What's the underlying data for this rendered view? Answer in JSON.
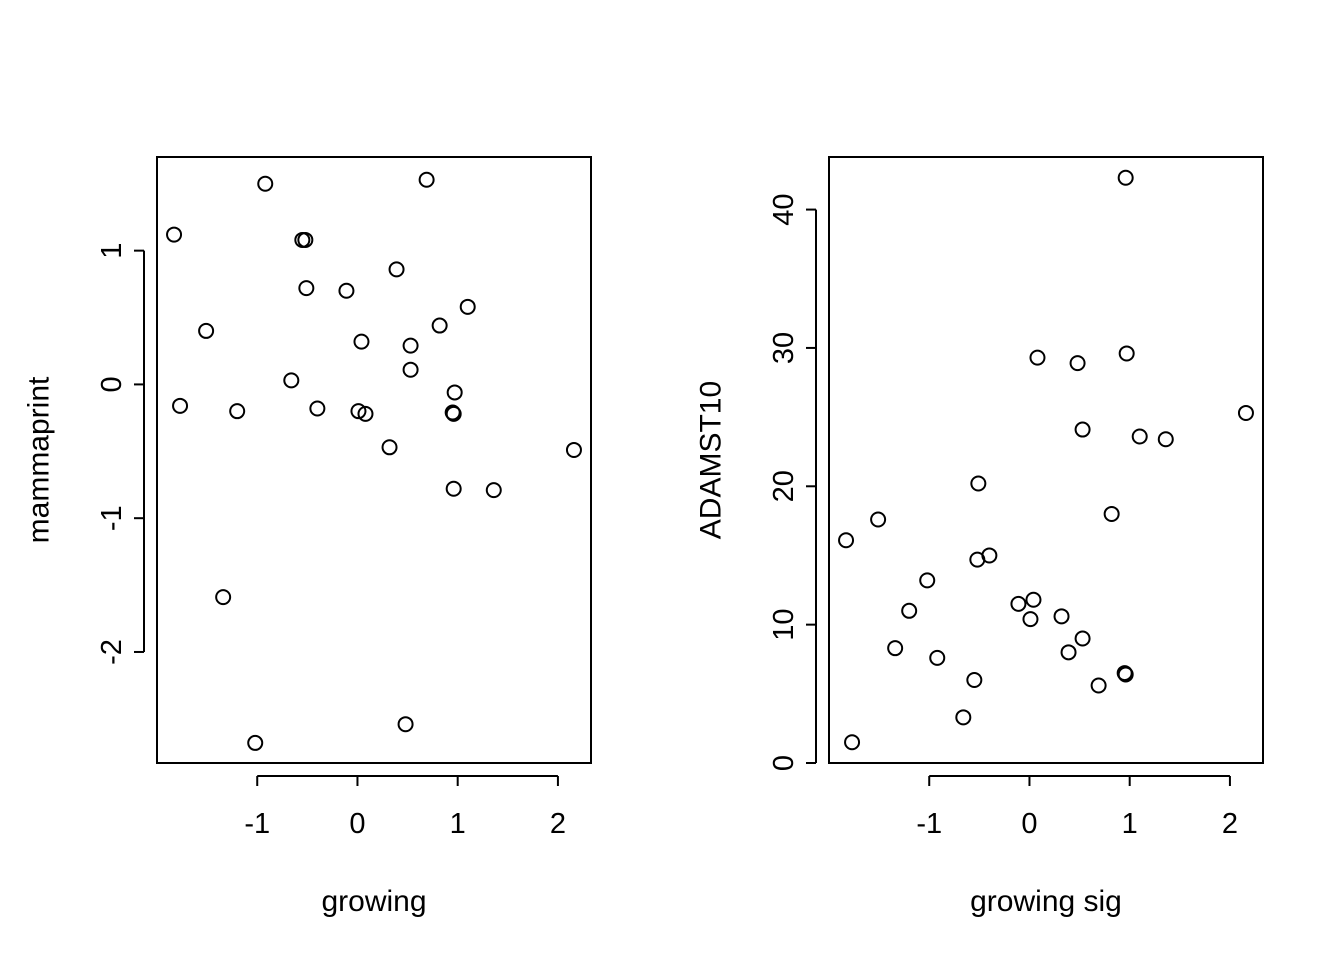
{
  "chart_data": [
    {
      "type": "scatter",
      "xlabel": "growing",
      "ylabel": "mammaprint",
      "xlim": [
        -2.0,
        2.33
      ],
      "ylim": [
        -2.83,
        1.7
      ],
      "xticks": [
        -1,
        0,
        1,
        2
      ],
      "yticks": [
        -2,
        -1,
        0,
        1
      ],
      "marker": "open-circle",
      "grid": false,
      "points": [
        {
          "x": -1.83,
          "y": 1.12
        },
        {
          "x": -1.77,
          "y": -0.16
        },
        {
          "x": -1.51,
          "y": 0.4
        },
        {
          "x": -1.34,
          "y": -1.59
        },
        {
          "x": -1.2,
          "y": -0.2
        },
        {
          "x": -1.02,
          "y": -2.68
        },
        {
          "x": -0.92,
          "y": 1.5
        },
        {
          "x": -0.66,
          "y": 0.03
        },
        {
          "x": -0.55,
          "y": 1.08
        },
        {
          "x": -0.52,
          "y": 1.08
        },
        {
          "x": -0.51,
          "y": 0.72
        },
        {
          "x": -0.4,
          "y": -0.18
        },
        {
          "x": -0.11,
          "y": 0.7
        },
        {
          "x": 0.01,
          "y": -0.2
        },
        {
          "x": 0.04,
          "y": 0.32
        },
        {
          "x": 0.08,
          "y": -0.22
        },
        {
          "x": 0.32,
          "y": -0.47
        },
        {
          "x": 0.39,
          "y": 0.86
        },
        {
          "x": 0.48,
          "y": -2.54
        },
        {
          "x": 0.53,
          "y": 0.29
        },
        {
          "x": 0.53,
          "y": 0.11
        },
        {
          "x": 0.69,
          "y": 1.53
        },
        {
          "x": 0.82,
          "y": 0.44
        },
        {
          "x": 0.95,
          "y": -0.21
        },
        {
          "x": 0.96,
          "y": -0.22
        },
        {
          "x": 0.96,
          "y": -0.78
        },
        {
          "x": 0.97,
          "y": -0.06
        },
        {
          "x": 1.1,
          "y": 0.58
        },
        {
          "x": 1.36,
          "y": -0.79
        },
        {
          "x": 2.16,
          "y": -0.49
        }
      ]
    },
    {
      "type": "scatter",
      "xlabel": "growing sig",
      "ylabel": "ADAMST10",
      "xlim": [
        -2.0,
        2.33
      ],
      "ylim": [
        0,
        43.8
      ],
      "xticks": [
        -1,
        0,
        1,
        2
      ],
      "yticks": [
        0,
        10,
        20,
        30,
        40
      ],
      "marker": "open-circle",
      "grid": false,
      "points": [
        {
          "x": -1.83,
          "y": 16.1
        },
        {
          "x": -1.77,
          "y": 1.5
        },
        {
          "x": -1.51,
          "y": 17.6
        },
        {
          "x": -1.34,
          "y": 8.3
        },
        {
          "x": -1.2,
          "y": 11.0
        },
        {
          "x": -1.02,
          "y": 13.2
        },
        {
          "x": -0.92,
          "y": 7.6
        },
        {
          "x": -0.66,
          "y": 3.3
        },
        {
          "x": -0.55,
          "y": 6.0
        },
        {
          "x": -0.52,
          "y": 14.7
        },
        {
          "x": -0.51,
          "y": 20.2
        },
        {
          "x": -0.4,
          "y": 15.0
        },
        {
          "x": -0.11,
          "y": 11.5
        },
        {
          "x": 0.01,
          "y": 10.4
        },
        {
          "x": 0.04,
          "y": 11.8
        },
        {
          "x": 0.08,
          "y": 29.3
        },
        {
          "x": 0.32,
          "y": 10.6
        },
        {
          "x": 0.39,
          "y": 8.0
        },
        {
          "x": 0.48,
          "y": 28.9
        },
        {
          "x": 0.53,
          "y": 9.0
        },
        {
          "x": 0.53,
          "y": 24.1
        },
        {
          "x": 0.69,
          "y": 5.6
        },
        {
          "x": 0.82,
          "y": 18.0
        },
        {
          "x": 0.95,
          "y": 6.5
        },
        {
          "x": 0.96,
          "y": 6.4
        },
        {
          "x": 0.96,
          "y": 42.3
        },
        {
          "x": 0.97,
          "y": 29.6
        },
        {
          "x": 1.1,
          "y": 23.6
        },
        {
          "x": 1.36,
          "y": 23.4
        },
        {
          "x": 2.16,
          "y": 25.3
        }
      ]
    }
  ]
}
